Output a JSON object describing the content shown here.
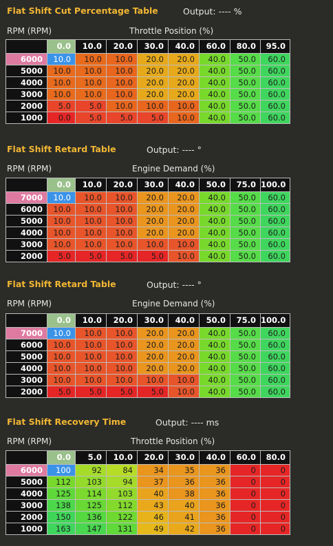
{
  "colors": {
    "accent_title": "#f2b733",
    "highlight_rpm": "#de7aa0",
    "selected_cell": "#3b93e8",
    "first_col_header": "#9ac18b"
  },
  "tables": [
    {
      "title": "Flat Shift Cut Percentage Table",
      "output": "Output: ---- %",
      "row_label": "RPM (RPM)",
      "col_label": "Throttle Position (%)",
      "columns": [
        "0.0",
        "10.0",
        "20.0",
        "30.0",
        "40.0",
        "60.0",
        "80.0",
        "95.0"
      ],
      "rows": [
        {
          "rpm": "6000",
          "values": [
            "10.0",
            "10.0",
            "10.0",
            "20.0",
            "20.0",
            "40.0",
            "50.0",
            "60.0"
          ]
        },
        {
          "rpm": "5000",
          "values": [
            "10.0",
            "10.0",
            "10.0",
            "20.0",
            "20.0",
            "40.0",
            "50.0",
            "60.0"
          ]
        },
        {
          "rpm": "4000",
          "values": [
            "10.0",
            "10.0",
            "10.0",
            "20.0",
            "20.0",
            "40.0",
            "50.0",
            "60.0"
          ]
        },
        {
          "rpm": "3000",
          "values": [
            "10.0",
            "10.0",
            "10.0",
            "20.0",
            "20.0",
            "40.0",
            "50.0",
            "60.0"
          ]
        },
        {
          "rpm": "2000",
          "values": [
            "5.0",
            "5.0",
            "10.0",
            "10.0",
            "10.0",
            "40.0",
            "50.0",
            "60.0"
          ]
        },
        {
          "rpm": "1000",
          "values": [
            "0.0",
            "5.0",
            "5.0",
            "5.0",
            "10.0",
            "40.0",
            "50.0",
            "60.0"
          ]
        }
      ],
      "cell_colors": [
        [
          "#3b93e8",
          "#e86a1c",
          "#e8661d",
          "#e6a91b",
          "#e6a91b",
          "#78d92c",
          "#56dc48",
          "#3fd65e"
        ],
        [
          "#e86a1c",
          "#e86a1c",
          "#e8661d",
          "#e6a91b",
          "#e6a91b",
          "#78d92c",
          "#56dc48",
          "#3fd65e"
        ],
        [
          "#e86a1c",
          "#e86a1c",
          "#e8661d",
          "#e6a91b",
          "#e6a91b",
          "#78d92c",
          "#56dc48",
          "#3fd65e"
        ],
        [
          "#e86a1c",
          "#e86a1c",
          "#e8661d",
          "#e6a91b",
          "#e6a91b",
          "#78d92c",
          "#56dc48",
          "#3fd65e"
        ],
        [
          "#e8452a",
          "#e8452a",
          "#e8661d",
          "#e8661d",
          "#e8661d",
          "#78d92c",
          "#56dc48",
          "#3fd65e"
        ],
        [
          "#e62626",
          "#e8452a",
          "#e8452a",
          "#e8452a",
          "#e8661d",
          "#78d92c",
          "#56dc48",
          "#3fd65e"
        ]
      ]
    },
    {
      "title": "Flat Shift Retard Table",
      "output": "Output: ---- °",
      "row_label": "RPM (RPM)",
      "col_label": "Engine Demand (%)",
      "columns": [
        "0.0",
        "10.0",
        "20.0",
        "30.0",
        "40.0",
        "50.0",
        "75.0",
        "100.0"
      ],
      "rows": [
        {
          "rpm": "7000",
          "values": [
            "10.0",
            "10.0",
            "10.0",
            "20.0",
            "20.0",
            "40.0",
            "50.0",
            "60.0"
          ]
        },
        {
          "rpm": "6000",
          "values": [
            "10.0",
            "10.0",
            "10.0",
            "20.0",
            "20.0",
            "40.0",
            "50.0",
            "60.0"
          ]
        },
        {
          "rpm": "5000",
          "values": [
            "10.0",
            "10.0",
            "10.0",
            "20.0",
            "20.0",
            "40.0",
            "50.0",
            "60.0"
          ]
        },
        {
          "rpm": "4000",
          "values": [
            "10.0",
            "10.0",
            "10.0",
            "20.0",
            "20.0",
            "40.0",
            "50.0",
            "60.0"
          ]
        },
        {
          "rpm": "3000",
          "values": [
            "10.0",
            "10.0",
            "10.0",
            "10.0",
            "10.0",
            "40.0",
            "50.0",
            "60.0"
          ]
        },
        {
          "rpm": "2000",
          "values": [
            "5.0",
            "5.0",
            "5.0",
            "5.0",
            "10.0",
            "40.0",
            "50.0",
            "60.0"
          ]
        }
      ],
      "cell_colors": [
        [
          "#3b93e8",
          "#e8552a",
          "#e8552a",
          "#e9951e",
          "#e9951e",
          "#78d92c",
          "#56dc48",
          "#3fd65e"
        ],
        [
          "#e8552a",
          "#e8552a",
          "#e8552a",
          "#e9951e",
          "#e9951e",
          "#78d92c",
          "#56dc48",
          "#3fd65e"
        ],
        [
          "#e8552a",
          "#e8552a",
          "#e8552a",
          "#e9951e",
          "#e9951e",
          "#78d92c",
          "#56dc48",
          "#3fd65e"
        ],
        [
          "#e8552a",
          "#e8552a",
          "#e8552a",
          "#e9951e",
          "#e9951e",
          "#78d92c",
          "#56dc48",
          "#3fd65e"
        ],
        [
          "#e8552a",
          "#e8552a",
          "#e8552a",
          "#e8552a",
          "#e8552a",
          "#78d92c",
          "#56dc48",
          "#3fd65e"
        ],
        [
          "#e62626",
          "#e62626",
          "#e62626",
          "#e62626",
          "#e8552a",
          "#78d92c",
          "#56dc48",
          "#3fd65e"
        ]
      ]
    },
    {
      "title": "Flat Shift Retard Table",
      "output": "Output: ---- °",
      "row_label": "RPM (RPM)",
      "col_label": "Engine Demand (%)",
      "columns": [
        "0.0",
        "10.0",
        "20.0",
        "30.0",
        "40.0",
        "50.0",
        "75.0",
        "100.0"
      ],
      "rows": [
        {
          "rpm": "7000",
          "values": [
            "10.0",
            "10.0",
            "10.0",
            "20.0",
            "20.0",
            "40.0",
            "50.0",
            "60.0"
          ]
        },
        {
          "rpm": "6000",
          "values": [
            "10.0",
            "10.0",
            "10.0",
            "20.0",
            "20.0",
            "40.0",
            "50.0",
            "60.0"
          ]
        },
        {
          "rpm": "5000",
          "values": [
            "10.0",
            "10.0",
            "10.0",
            "20.0",
            "20.0",
            "40.0",
            "50.0",
            "60.0"
          ]
        },
        {
          "rpm": "4000",
          "values": [
            "10.0",
            "10.0",
            "10.0",
            "20.0",
            "20.0",
            "40.0",
            "50.0",
            "60.0"
          ]
        },
        {
          "rpm": "3000",
          "values": [
            "10.0",
            "10.0",
            "10.0",
            "10.0",
            "10.0",
            "40.0",
            "50.0",
            "60.0"
          ]
        },
        {
          "rpm": "2000",
          "values": [
            "5.0",
            "5.0",
            "5.0",
            "5.0",
            "10.0",
            "40.0",
            "50.0",
            "60.0"
          ]
        }
      ],
      "cell_colors": [
        [
          "#3b93e8",
          "#e8552a",
          "#e8552a",
          "#e9951e",
          "#e9951e",
          "#78d92c",
          "#56dc48",
          "#3fd65e"
        ],
        [
          "#e8552a",
          "#e8552a",
          "#e8552a",
          "#e9951e",
          "#e9951e",
          "#78d92c",
          "#56dc48",
          "#3fd65e"
        ],
        [
          "#e8552a",
          "#e8552a",
          "#e8552a",
          "#e9951e",
          "#e9951e",
          "#78d92c",
          "#56dc48",
          "#3fd65e"
        ],
        [
          "#e8552a",
          "#e8552a",
          "#e8552a",
          "#e9951e",
          "#e9951e",
          "#78d92c",
          "#56dc48",
          "#3fd65e"
        ],
        [
          "#e8552a",
          "#e8552a",
          "#e8552a",
          "#e8552a",
          "#e8552a",
          "#78d92c",
          "#56dc48",
          "#3fd65e"
        ],
        [
          "#e62626",
          "#e62626",
          "#e62626",
          "#e62626",
          "#e8552a",
          "#78d92c",
          "#56dc48",
          "#3fd65e"
        ]
      ]
    },
    {
      "title": "Flat Shift Recovery Time",
      "output": "Output: ---- ms",
      "row_label": "RPM (RPM)",
      "col_label": "Throttle Position (%)",
      "columns": [
        "0.0",
        "5.0",
        "10.0",
        "20.0",
        "30.0",
        "40.0",
        "60.0",
        "80.0"
      ],
      "rows": [
        {
          "rpm": "6000",
          "values": [
            "100",
            "92",
            "84",
            "34",
            "35",
            "36",
            "0",
            "0"
          ]
        },
        {
          "rpm": "5000",
          "values": [
            "112",
            "103",
            "94",
            "37",
            "36",
            "36",
            "0",
            "0"
          ]
        },
        {
          "rpm": "4000",
          "values": [
            "125",
            "114",
            "103",
            "40",
            "38",
            "36",
            "0",
            "0"
          ]
        },
        {
          "rpm": "3000",
          "values": [
            "138",
            "125",
            "112",
            "43",
            "40",
            "36",
            "0",
            "0"
          ]
        },
        {
          "rpm": "2000",
          "values": [
            "150",
            "136",
            "122",
            "46",
            "41",
            "36",
            "0",
            "0"
          ]
        },
        {
          "rpm": "1000",
          "values": [
            "163",
            "147",
            "131",
            "49",
            "42",
            "36",
            "0",
            "0"
          ]
        }
      ],
      "cell_colors": [
        [
          "#3b93e8",
          "#a6db2a",
          "#b7dc26",
          "#e9951e",
          "#e9951e",
          "#e9951e",
          "#e62626",
          "#e62626"
        ],
        [
          "#78d92c",
          "#93da2b",
          "#a6db2a",
          "#e9951e",
          "#e9951e",
          "#e9951e",
          "#e62626",
          "#e62626"
        ],
        [
          "#5fd93a",
          "#7cd92d",
          "#93da2b",
          "#e9a31c",
          "#e9951e",
          "#e9951e",
          "#e62626",
          "#e62626"
        ],
        [
          "#4cd84a",
          "#68d934",
          "#83d92c",
          "#e9a91b",
          "#e9a31c",
          "#e9951e",
          "#e62626",
          "#e62626"
        ],
        [
          "#40d65a",
          "#55d840",
          "#70d931",
          "#e6b41a",
          "#e9a31c",
          "#e9951e",
          "#e62626",
          "#e62626"
        ],
        [
          "#3fd65e",
          "#48d74e",
          "#60d93a",
          "#e6b81a",
          "#e9a91b",
          "#e9951e",
          "#e62626",
          "#e62626"
        ]
      ]
    }
  ]
}
